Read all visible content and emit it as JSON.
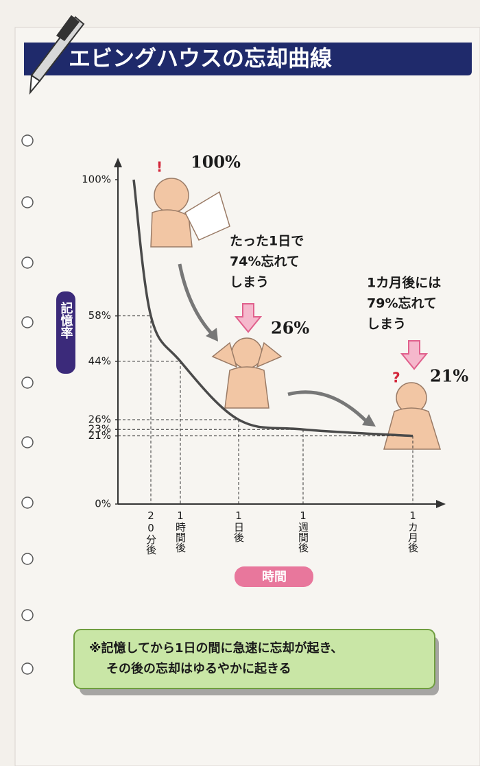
{
  "chart_data": {
    "type": "line",
    "title": "エビングハウスの忘却曲線",
    "y_label": "記憶率",
    "x_label": "時間",
    "categories": [
      null,
      "20分後",
      "1時間後",
      "1日後",
      "1週間後",
      "1カ月後"
    ],
    "values": [
      100,
      58,
      44,
      26,
      23,
      21
    ],
    "color": "#4a4a4a",
    "ylim": [
      0,
      100
    ],
    "yticks": [
      {
        "value": 0,
        "label": "0%"
      },
      {
        "value": 21,
        "label": "21%"
      },
      {
        "value": 23,
        "label": "23%"
      },
      {
        "value": 26,
        "label": "26%"
      },
      {
        "value": 44,
        "label": "44%"
      },
      {
        "value": 58,
        "label": "58%"
      },
      {
        "value": 100,
        "label": "100%"
      }
    ],
    "point_labels": [
      {
        "value": 100,
        "label": "100%"
      },
      {
        "value": 26,
        "label": "26%"
      },
      {
        "value": 21,
        "label": "21%"
      }
    ],
    "annotations": [
      [
        "たった1日で",
        "74%忘れて",
        "しまう"
      ],
      [
        "1カ月後には",
        "79%忘れて",
        "しまう"
      ]
    ],
    "note": [
      "※記憶してから1日の間に急速に忘却が起き、",
      "その後の忘却はゆるやかに起きる"
    ]
  }
}
